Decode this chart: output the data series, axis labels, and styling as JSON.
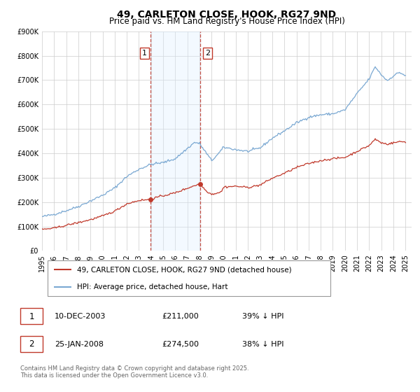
{
  "title": "49, CARLETON CLOSE, HOOK, RG27 9ND",
  "subtitle": "Price paid vs. HM Land Registry's House Price Index (HPI)",
  "ylim": [
    0,
    900000
  ],
  "xlim_start": 1995,
  "xlim_end": 2025.5,
  "yticks": [
    0,
    100000,
    200000,
    300000,
    400000,
    500000,
    600000,
    700000,
    800000,
    900000
  ],
  "ytick_labels": [
    "£0",
    "£100K",
    "£200K",
    "£300K",
    "£400K",
    "£500K",
    "£600K",
    "£700K",
    "£800K",
    "£900K"
  ],
  "xticks": [
    1995,
    1996,
    1997,
    1998,
    1999,
    2000,
    2001,
    2002,
    2003,
    2004,
    2005,
    2006,
    2007,
    2008,
    2009,
    2010,
    2011,
    2012,
    2013,
    2014,
    2015,
    2016,
    2017,
    2018,
    2019,
    2020,
    2021,
    2022,
    2023,
    2024,
    2025
  ],
  "hpi_color": "#7aa8d2",
  "price_color": "#c0392b",
  "shade_color": "#ddeeff",
  "vline_color": "#c0392b",
  "sale1_x": 2003.95,
  "sale1_y": 211000,
  "sale2_x": 2008.07,
  "sale2_y": 274500,
  "legend_label_price": "49, CARLETON CLOSE, HOOK, RG27 9ND (detached house)",
  "legend_label_hpi": "HPI: Average price, detached house, Hart",
  "table_row1": [
    "1",
    "10-DEC-2003",
    "£211,000",
    "39% ↓ HPI"
  ],
  "table_row2": [
    "2",
    "25-JAN-2008",
    "£274,500",
    "38% ↓ HPI"
  ],
  "footer": "Contains HM Land Registry data © Crown copyright and database right 2025.\nThis data is licensed under the Open Government Licence v3.0.",
  "background_color": "#ffffff",
  "grid_color": "#cccccc",
  "title_fontsize": 10,
  "subtitle_fontsize": 8.5,
  "tick_fontsize": 7,
  "legend_fontsize": 7.5
}
